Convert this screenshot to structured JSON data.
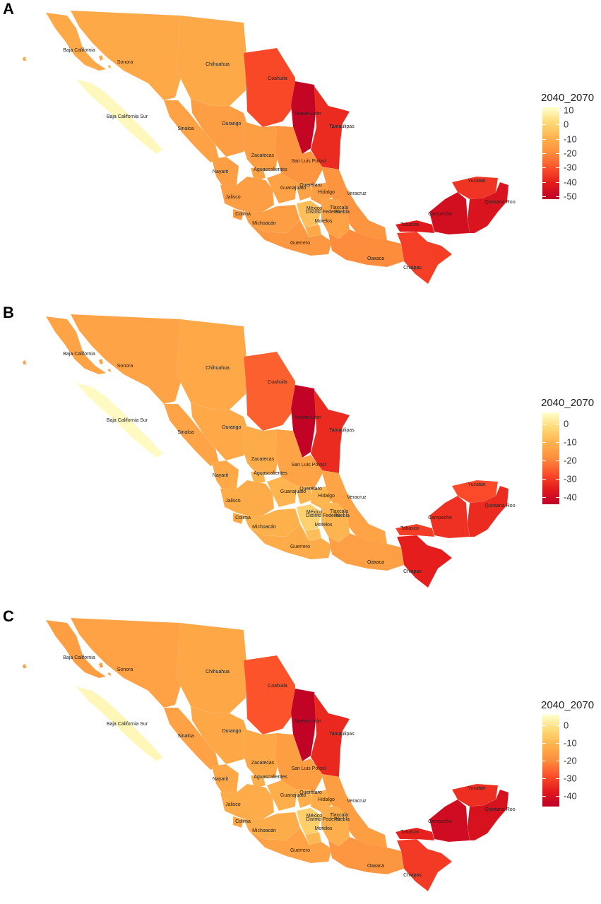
{
  "panels": [
    {
      "label": "A",
      "legend": {
        "title": "2040_2070",
        "ticks": [
          "10",
          "0",
          "-10",
          "-20",
          "-30",
          "-40",
          "-50"
        ],
        "tick_values": [
          10,
          0,
          -10,
          -20,
          -30,
          -40,
          -50
        ],
        "range": [
          -52,
          12
        ]
      },
      "values": {
        "baja_california": -12,
        "sonora": -12,
        "chihuahua": -12,
        "coahuila": -32,
        "nuevo_leon": -50,
        "tamaulipas": -38,
        "baja_california_sur": 10,
        "sinaloa": -14,
        "durango": -15,
        "zacatecas": -15,
        "san_luis_potosi": -18,
        "nayarit": -15,
        "aguascalientes": -14,
        "jalisco": -15,
        "guanajuato": -14,
        "queretaro": -14,
        "hidalgo": -15,
        "veracruz": -18,
        "colima": -16,
        "michoacan": -15,
        "mexico": -6,
        "distrito_federal": -6,
        "tlaxcala": -10,
        "puebla": -14,
        "morelos": -12,
        "guerrero": -17,
        "oaxaca": -20,
        "chiapas": -34,
        "tabasco": -42,
        "campeche": -46,
        "yucatan": -36,
        "quintana_roo": -44
      }
    },
    {
      "label": "B",
      "legend": {
        "title": "2040_2070",
        "ticks": [
          "0",
          "-10",
          "-20",
          "-30",
          "-40"
        ],
        "tick_values": [
          0,
          -10,
          -20,
          -30,
          -40
        ],
        "range": [
          -44,
          6
        ]
      },
      "values": {
        "baja_california": -14,
        "sonora": -14,
        "chihuahua": -13,
        "coahuila": -25,
        "nuevo_leon": -43,
        "tamaulipas": -33,
        "baja_california_sur": 5,
        "sinaloa": -14,
        "durango": -13,
        "zacatecas": -12,
        "san_luis_potosi": -14,
        "nayarit": -13,
        "aguascalientes": -10,
        "jalisco": -12,
        "guanajuato": -10,
        "queretaro": -10,
        "hidalgo": -10,
        "veracruz": -14,
        "colima": -13,
        "michoacan": -11,
        "mexico": -4,
        "distrito_federal": -4,
        "tlaxcala": -8,
        "puebla": -10,
        "morelos": -8,
        "guerrero": -12,
        "oaxaca": -15,
        "chiapas": -35,
        "tabasco": -30,
        "campeche": -32,
        "yucatan": -28,
        "quintana_roo": -33
      }
    },
    {
      "label": "C",
      "legend": {
        "title": "2040_2070",
        "ticks": [
          "0",
          "-10",
          "-20",
          "-30",
          "-40"
        ],
        "tick_values": [
          0,
          -10,
          -20,
          -30,
          -40
        ],
        "range": [
          -46,
          6
        ]
      },
      "values": {
        "baja_california": -16,
        "sonora": -15,
        "chihuahua": -14,
        "coahuila": -28,
        "nuevo_leon": -45,
        "tamaulipas": -35,
        "baja_california_sur": 4,
        "sinaloa": -15,
        "durango": -14,
        "zacatecas": -14,
        "san_luis_potosi": -16,
        "nayarit": -14,
        "aguascalientes": -12,
        "jalisco": -13,
        "guanajuato": -12,
        "queretaro": -12,
        "hidalgo": -13,
        "veracruz": -16,
        "colima": -14,
        "michoacan": -13,
        "mexico": -5,
        "distrito_federal": -5,
        "tlaxcala": -9,
        "puebla": -12,
        "morelos": -10,
        "guerrero": -15,
        "oaxaca": -18,
        "chiapas": -32,
        "tabasco": -36,
        "campeche": -42,
        "yucatan": -34,
        "quintana_roo": -40
      }
    }
  ],
  "state_labels": {
    "baja_california": "Baja California",
    "sonora": "Sonora",
    "chihuahua": "Chihuahua",
    "coahuila": "Coahuila",
    "nuevo_leon": "Nuevo León",
    "tamaulipas": "Tamaulipas",
    "baja_california_sur": "Baja California Sur",
    "sinaloa": "Sinaloa",
    "durango": "Durango",
    "zacatecas": "Zacatecas",
    "san_luis_potosi": "San Luis Potosí",
    "nayarit": "Nayarit",
    "aguascalientes": "Aguascalientes",
    "jalisco": "Jalisco",
    "guanajuato": "Guanajuato",
    "queretaro": "Querétaro",
    "hidalgo": "Hidalgo",
    "veracruz": "Veracruz",
    "colima": "Colima",
    "michoacan": "Michoacán",
    "mexico": "México",
    "distrito_federal": "Distrito Federal",
    "tlaxcala": "Tlaxcala",
    "puebla": "Puebla",
    "morelos": "Morelos",
    "guerrero": "Guerrero",
    "oaxaca": "Oaxaca",
    "chiapas": "Chiapas",
    "tabasco": "Tabasco",
    "campeche": "Campeche",
    "yucatan": "Yucatán",
    "quintana_roo": "Quintana Roo"
  },
  "colors": {
    "scale": [
      "#ffffcc",
      "#fed976",
      "#feb24c",
      "#fd8d3c",
      "#fc4e2a",
      "#e31a1c",
      "#bd0026"
    ],
    "background": "#ffffff"
  }
}
